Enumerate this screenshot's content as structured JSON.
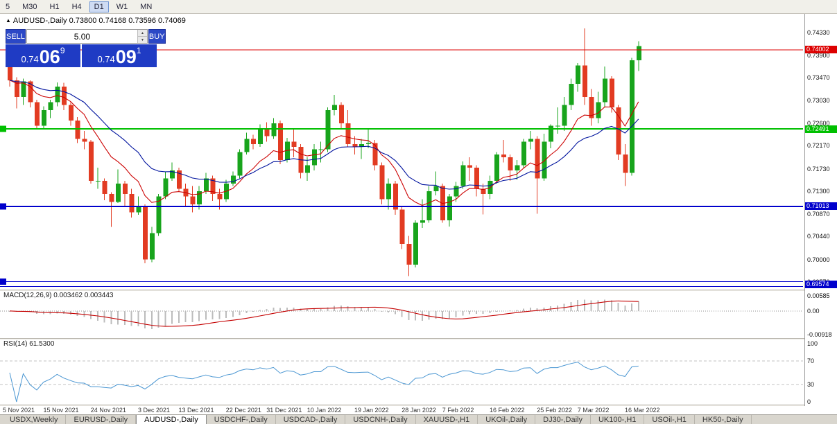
{
  "toolbar": {
    "timeframes": [
      "5",
      "M30",
      "H1",
      "H4",
      "D1",
      "W1",
      "MN"
    ],
    "active_timeframe": "D1"
  },
  "chart_title": {
    "marker": "▲",
    "text": "AUDUSD-,Daily 0.73800 0.74168 0.73596 0.74069"
  },
  "trade_panel": {
    "sell_label": "SELL",
    "buy_label": "BUY",
    "volume": "5.00",
    "sell_price": {
      "small": "0.74",
      "big": "06",
      "sup": "9"
    },
    "buy_price": {
      "small": "0.74",
      "big": "09",
      "sup": "1"
    }
  },
  "icons": {
    "spinner_up": "▲",
    "spinner_down": "▼"
  },
  "colors": {
    "bull": "#18a41c",
    "bear": "#e23b22",
    "trade_blue": "#1f3bc4",
    "macd_hist": "#bcbcbc",
    "macd_signal": "#c40000",
    "rsi_line": "#4a96d2",
    "ma_fast": "#cc0000",
    "ma_slow": "#00139e"
  },
  "chart_data": {
    "type": "candlestick",
    "symbol": "AUDUSD-,Daily",
    "y_ticks": [
      "0.74330",
      "0.73900",
      "0.73470",
      "0.73030",
      "0.72600",
      "0.72170",
      "0.71730",
      "0.71300",
      "0.70870",
      "0.70440",
      "0.70000",
      "0.69570"
    ],
    "levels": [
      {
        "price": 0.74002,
        "label": "0.74002",
        "color": "#dd0000",
        "width": 1,
        "double": false,
        "left_tag": false
      },
      {
        "price": 0.72491,
        "label": "0.72491",
        "color": "#00c000",
        "width": 2,
        "double": false,
        "left_tag": true
      },
      {
        "price": 0.71013,
        "label": "0.71013",
        "color": "#0000cc",
        "width": 2,
        "double": false,
        "left_tag": true
      },
      {
        "price": 0.69574,
        "label": "0.69574",
        "color": "#0000cc",
        "width": 1,
        "double": true,
        "left_tag": true
      }
    ],
    "moving_averages": [
      {
        "period": 10,
        "color": "#cc0000"
      },
      {
        "period": 21,
        "color": "#00139e"
      }
    ],
    "candles": [
      [
        0.7368,
        0.7372,
        0.733,
        0.7342
      ],
      [
        0.7342,
        0.7348,
        0.7288,
        0.731
      ],
      [
        0.731,
        0.7345,
        0.7295,
        0.734
      ],
      [
        0.734,
        0.7342,
        0.729,
        0.73
      ],
      [
        0.73,
        0.7305,
        0.725,
        0.7255
      ],
      [
        0.7255,
        0.7292,
        0.7248,
        0.7285
      ],
      [
        0.7285,
        0.7305,
        0.727,
        0.73
      ],
      [
        0.73,
        0.7338,
        0.7292,
        0.733
      ],
      [
        0.733,
        0.7337,
        0.7285,
        0.7295
      ],
      [
        0.7295,
        0.73,
        0.7255,
        0.7265
      ],
      [
        0.7265,
        0.7272,
        0.7222,
        0.723
      ],
      [
        0.723,
        0.7245,
        0.721,
        0.7225
      ],
      [
        0.7225,
        0.7228,
        0.7145,
        0.715
      ],
      [
        0.715,
        0.7175,
        0.7135,
        0.715
      ],
      [
        0.715,
        0.7155,
        0.7113,
        0.7125
      ],
      [
        0.7125,
        0.7128,
        0.7062,
        0.711
      ],
      [
        0.711,
        0.7172,
        0.7108,
        0.7145
      ],
      [
        0.7145,
        0.715,
        0.71,
        0.7125
      ],
      [
        0.7125,
        0.7135,
        0.708,
        0.709
      ],
      [
        0.709,
        0.712,
        0.7085,
        0.71
      ],
      [
        0.71,
        0.7105,
        0.6993,
        0.7
      ],
      [
        0.7,
        0.7062,
        0.6995,
        0.705
      ],
      [
        0.705,
        0.7125,
        0.7045,
        0.712
      ],
      [
        0.712,
        0.7168,
        0.7115,
        0.7155
      ],
      [
        0.7155,
        0.7185,
        0.715,
        0.717
      ],
      [
        0.717,
        0.7175,
        0.713,
        0.7135
      ],
      [
        0.7135,
        0.7145,
        0.71,
        0.712
      ],
      [
        0.712,
        0.714,
        0.709,
        0.7105
      ],
      [
        0.7105,
        0.714,
        0.7095,
        0.713
      ],
      [
        0.713,
        0.7165,
        0.7125,
        0.7155
      ],
      [
        0.7155,
        0.716,
        0.7112,
        0.7125
      ],
      [
        0.7125,
        0.7135,
        0.7095,
        0.7115
      ],
      [
        0.7115,
        0.7152,
        0.711,
        0.7145
      ],
      [
        0.7145,
        0.7168,
        0.714,
        0.716
      ],
      [
        0.716,
        0.721,
        0.7155,
        0.7205
      ],
      [
        0.7205,
        0.7242,
        0.72,
        0.723
      ],
      [
        0.723,
        0.7238,
        0.721,
        0.722
      ],
      [
        0.722,
        0.7258,
        0.7215,
        0.725
      ],
      [
        0.725,
        0.7262,
        0.7225,
        0.7235
      ],
      [
        0.7235,
        0.727,
        0.723,
        0.726
      ],
      [
        0.726,
        0.7265,
        0.7182,
        0.719
      ],
      [
        0.719,
        0.7232,
        0.7185,
        0.7225
      ],
      [
        0.7225,
        0.725,
        0.7195,
        0.7215
      ],
      [
        0.7215,
        0.722,
        0.7155,
        0.7165
      ],
      [
        0.7165,
        0.7195,
        0.715,
        0.718
      ],
      [
        0.718,
        0.722,
        0.717,
        0.721
      ],
      [
        0.721,
        0.7225,
        0.7185,
        0.721
      ],
      [
        0.721,
        0.729,
        0.7205,
        0.7285
      ],
      [
        0.7285,
        0.7314,
        0.7275,
        0.7295
      ],
      [
        0.7295,
        0.73,
        0.725,
        0.726
      ],
      [
        0.726,
        0.7285,
        0.7215,
        0.722
      ],
      [
        0.722,
        0.7235,
        0.72,
        0.7215
      ],
      [
        0.7215,
        0.723,
        0.7192,
        0.722
      ],
      [
        0.722,
        0.725,
        0.7212,
        0.7222
      ],
      [
        0.7222,
        0.7228,
        0.717,
        0.718
      ],
      [
        0.718,
        0.7185,
        0.7105,
        0.7115
      ],
      [
        0.7115,
        0.7155,
        0.7095,
        0.7145
      ],
      [
        0.7145,
        0.715,
        0.7085,
        0.7095
      ],
      [
        0.7095,
        0.71,
        0.702,
        0.703
      ],
      [
        0.703,
        0.7045,
        0.6968,
        0.699
      ],
      [
        0.699,
        0.7075,
        0.6985,
        0.707
      ],
      [
        0.707,
        0.7115,
        0.706,
        0.7075
      ],
      [
        0.7075,
        0.714,
        0.707,
        0.713
      ],
      [
        0.713,
        0.7168,
        0.7122,
        0.714
      ],
      [
        0.714,
        0.7145,
        0.707,
        0.7075
      ],
      [
        0.7075,
        0.7125,
        0.7063,
        0.712
      ],
      [
        0.712,
        0.7148,
        0.711,
        0.714
      ],
      [
        0.714,
        0.7187,
        0.7135,
        0.718
      ],
      [
        0.718,
        0.7195,
        0.715,
        0.7175
      ],
      [
        0.7175,
        0.718,
        0.712,
        0.7135
      ],
      [
        0.7135,
        0.7145,
        0.7086,
        0.7125
      ],
      [
        0.7125,
        0.716,
        0.7115,
        0.715
      ],
      [
        0.715,
        0.7205,
        0.7145,
        0.72
      ],
      [
        0.72,
        0.7228,
        0.7185,
        0.7195
      ],
      [
        0.7195,
        0.72,
        0.715,
        0.717
      ],
      [
        0.717,
        0.719,
        0.7152,
        0.718
      ],
      [
        0.718,
        0.723,
        0.7175,
        0.7225
      ],
      [
        0.7225,
        0.7245,
        0.721,
        0.723
      ],
      [
        0.723,
        0.7235,
        0.7087,
        0.7155
      ],
      [
        0.7155,
        0.724,
        0.715,
        0.7225
      ],
      [
        0.7225,
        0.7258,
        0.7212,
        0.7255
      ],
      [
        0.7255,
        0.729,
        0.724,
        0.7255
      ],
      [
        0.7255,
        0.731,
        0.7245,
        0.7295
      ],
      [
        0.7295,
        0.7345,
        0.7285,
        0.7335
      ],
      [
        0.7335,
        0.7375,
        0.732,
        0.737
      ],
      [
        0.737,
        0.7441,
        0.7295,
        0.731
      ],
      [
        0.731,
        0.7325,
        0.7255,
        0.727
      ],
      [
        0.727,
        0.732,
        0.726,
        0.73
      ],
      [
        0.73,
        0.7368,
        0.729,
        0.7345
      ],
      [
        0.7345,
        0.735,
        0.728,
        0.729
      ],
      [
        0.729,
        0.7295,
        0.719,
        0.72
      ],
      [
        0.72,
        0.722,
        0.714,
        0.7165
      ],
      [
        0.7165,
        0.7385,
        0.716,
        0.738
      ],
      [
        0.738,
        0.74168,
        0.73596,
        0.74069
      ]
    ],
    "date_labels": [
      [
        0,
        "5 Nov 2021"
      ],
      [
        6,
        "15 Nov 2021"
      ],
      [
        13,
        "24 Nov 2021"
      ],
      [
        20,
        "3 Dec 2021"
      ],
      [
        26,
        "13 Dec 2021"
      ],
      [
        33,
        "22 Dec 2021"
      ],
      [
        39,
        "31 Dec 2021"
      ],
      [
        45,
        "10 Jan 2022"
      ],
      [
        52,
        "19 Jan 2022"
      ],
      [
        59,
        "28 Jan 2022"
      ],
      [
        65,
        "7 Feb 2022"
      ],
      [
        72,
        "16 Feb 2022"
      ],
      [
        79,
        "25 Feb 2022"
      ],
      [
        85,
        "7 Mar 2022"
      ],
      [
        92,
        "16 Mar 2022"
      ]
    ],
    "indicators": [
      {
        "name": "macd",
        "label": "MACD(12,26,9) 0.003462 0.003443",
        "params": [
          12,
          26,
          9
        ],
        "scale": [
          "0.00585",
          "0.00",
          "-0.00918"
        ]
      },
      {
        "name": "rsi",
        "label": "RSI(14) 61.5300",
        "period": 14,
        "scale": [
          "100",
          "70",
          "30",
          "0"
        ],
        "levels": [
          70,
          30
        ]
      }
    ]
  },
  "tabs": {
    "active_index": 2,
    "items": [
      "USDX,Weekly",
      "EURUSD-,Daily",
      "AUDUSD-,Daily",
      "USDCHF-,Daily",
      "USDCAD-,Daily",
      "USDCNH-,Daily",
      "XAUUSD-,H1",
      "UKOil-,Daily",
      "DJ30-,Daily",
      "UK100-,H1",
      "USOil-,H1",
      "HK50-,Daily"
    ]
  }
}
